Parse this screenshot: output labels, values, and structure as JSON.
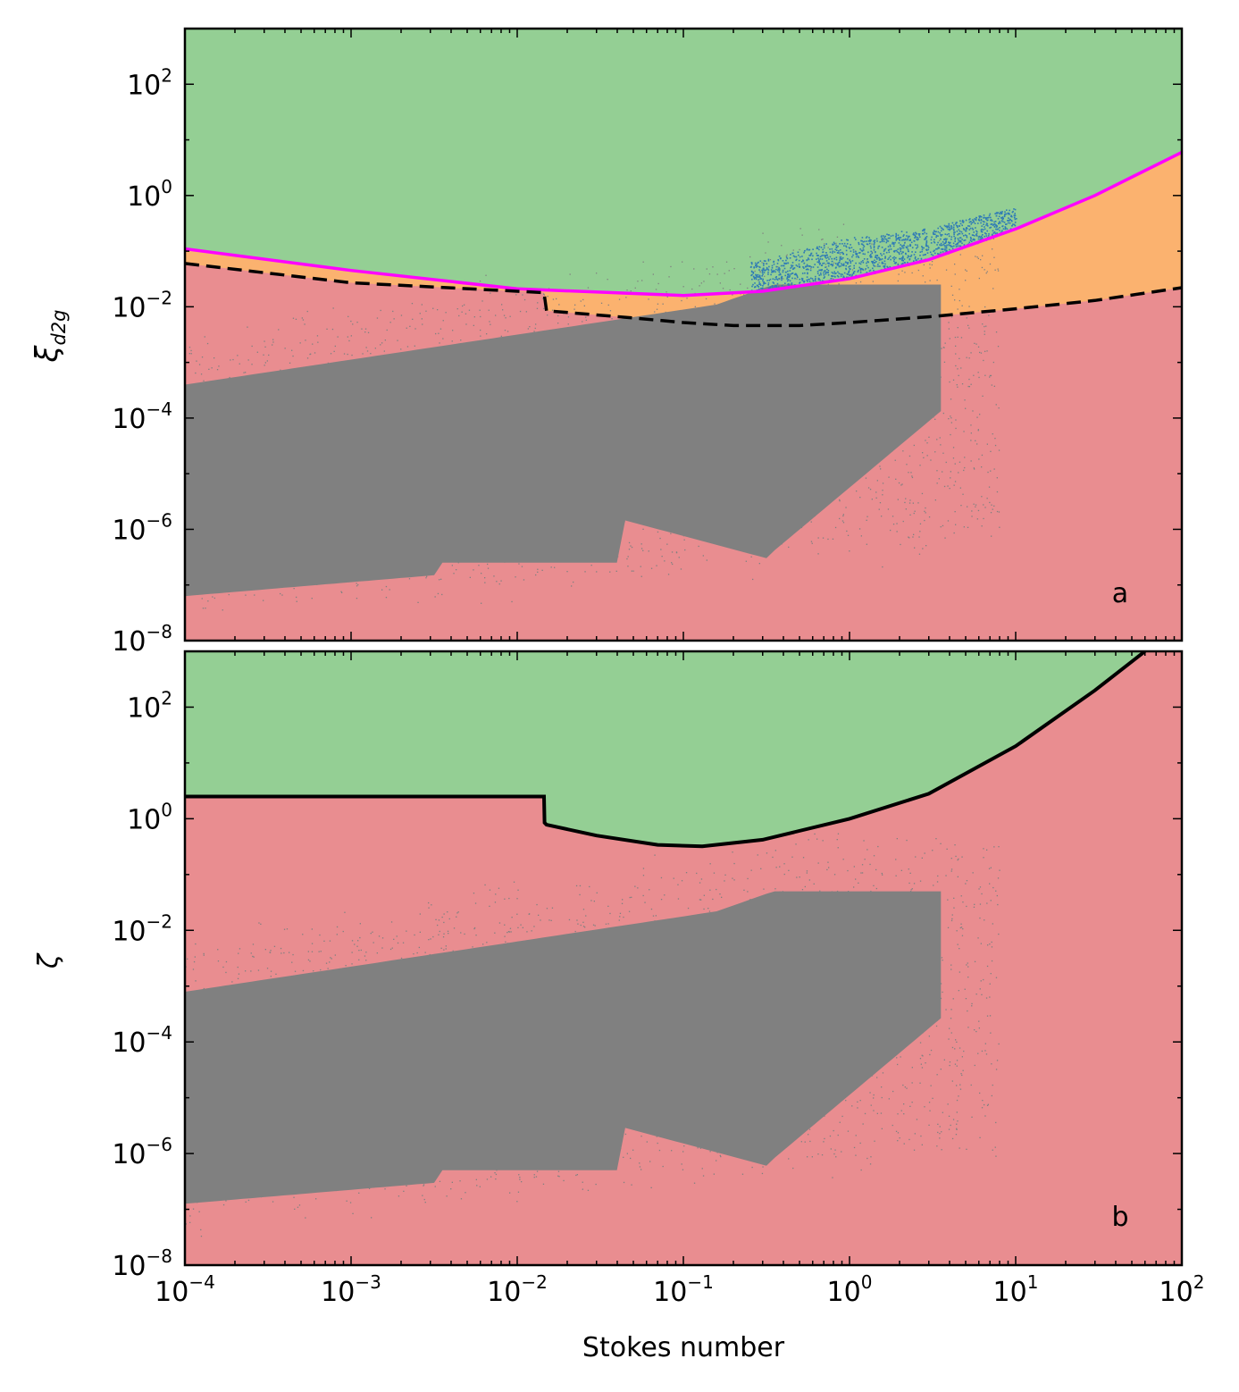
{
  "chart_data": [
    {
      "type": "scatter",
      "panel_label": "a",
      "ylabel": "ξ_d2g",
      "ylabel_main": "ξ",
      "ylabel_sub": "d2g",
      "xscale": "log",
      "yscale": "log",
      "xlim": [
        0.0001,
        100
      ],
      "ylim": [
        1e-08,
        1000
      ],
      "y_tick_exponents": [
        -8,
        -6,
        -4,
        -2,
        0,
        2
      ],
      "region_colors": {
        "stable": "#94cf94",
        "intermediate": "#fbb26f",
        "unstable": "#e98d90"
      },
      "point_colors": {
        "all": "#808080",
        "clumping": "#2f7bb6"
      },
      "series": [
        {
          "style": "solid",
          "color": "#ff00ff",
          "x": [
            0.0001,
            0.001,
            0.01,
            0.1,
            0.3,
            1,
            3,
            10,
            30,
            100
          ],
          "y": [
            0.11,
            0.045,
            0.021,
            0.016,
            0.019,
            0.032,
            0.07,
            0.25,
            1.0,
            6.0
          ]
        },
        {
          "style": "dashed",
          "color": "#000000",
          "x": [
            0.0001,
            0.001,
            0.0145,
            0.015,
            0.05,
            0.1,
            0.2,
            0.5,
            1,
            3,
            10,
            30,
            100
          ],
          "y": [
            0.06,
            0.027,
            0.018,
            0.0085,
            0.0063,
            0.0052,
            0.0046,
            0.0046,
            0.0052,
            0.0066,
            0.0092,
            0.013,
            0.022
          ]
        }
      ]
    },
    {
      "type": "scatter",
      "panel_label": "b",
      "ylabel": "ζ",
      "xlabel": "Stokes number",
      "xscale": "log",
      "yscale": "log",
      "xlim": [
        0.0001,
        100
      ],
      "ylim": [
        1e-08,
        1000
      ],
      "x_tick_exponents": [
        -4,
        -3,
        -2,
        -1,
        0,
        1,
        2
      ],
      "y_tick_exponents": [
        -8,
        -6,
        -4,
        -2,
        0,
        2
      ],
      "region_colors": {
        "stable": "#94cf94",
        "unstable": "#e98d90"
      },
      "point_colors": {
        "all": "#808080"
      },
      "series": [
        {
          "style": "solid",
          "color": "#000000",
          "x": [
            0.0001,
            0.0145,
            0.0146,
            0.015,
            0.03,
            0.07,
            0.13,
            0.3,
            1,
            3,
            10,
            30,
            60
          ],
          "y": [
            2.5,
            2.5,
            0.85,
            0.78,
            0.5,
            0.34,
            0.32,
            0.42,
            1.0,
            2.8,
            20,
            200,
            1000
          ]
        }
      ]
    }
  ]
}
